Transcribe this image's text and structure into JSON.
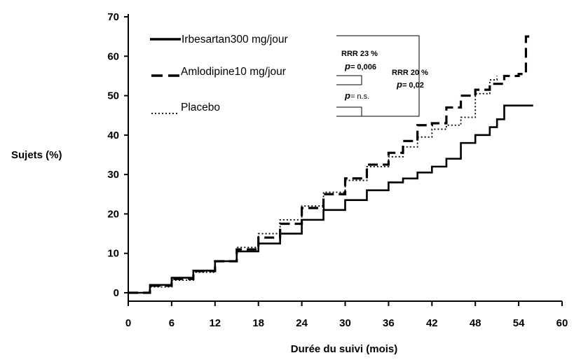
{
  "chart_data": {
    "type": "line",
    "xlabel": "Durée du suivi (mois)",
    "ylabel": "Sujets (%)",
    "xlim": [
      0,
      60
    ],
    "ylim": [
      0,
      70
    ],
    "x_ticks": [
      0,
      6,
      12,
      18,
      24,
      30,
      36,
      42,
      48,
      54,
      60
    ],
    "y_ticks": [
      0,
      10,
      20,
      30,
      40,
      50,
      60,
      70
    ],
    "grid": false,
    "legend_position": "top-left",
    "series": [
      {
        "name": "Irbesartan300 mg/jour",
        "style": "solid",
        "color": "#000000",
        "step": true,
        "x": [
          0,
          3,
          6,
          9,
          12,
          15,
          18,
          21,
          24,
          27,
          30,
          33,
          36,
          38,
          40,
          42,
          44,
          46,
          48,
          50,
          51,
          52,
          54,
          56
        ],
        "y": [
          0,
          2,
          3.8,
          5.6,
          8,
          10.5,
          12.5,
          15,
          18.5,
          21,
          23.5,
          26,
          28,
          29,
          30.5,
          32,
          34,
          38,
          40,
          42,
          44,
          47.5,
          47.5,
          47.5
        ]
      },
      {
        "name": "Amlodipine10 mg/jour",
        "style": "dashed",
        "color": "#000000",
        "step": true,
        "x": [
          0,
          3,
          6,
          9,
          12,
          15,
          18,
          21,
          24,
          27,
          30,
          33,
          36,
          38,
          40,
          42,
          44,
          46,
          48,
          50,
          52,
          54,
          55,
          56
        ],
        "y": [
          0,
          1.8,
          3.5,
          5.5,
          8,
          11,
          14,
          17.5,
          21.5,
          25,
          29,
          32.5,
          35.5,
          38.5,
          42.5,
          43,
          47,
          50,
          51.5,
          53,
          55,
          55.5,
          65,
          65
        ]
      },
      {
        "name": "Placebo",
        "style": "dotted",
        "color": "#000000",
        "step": true,
        "x": [
          0,
          3,
          6,
          9,
          12,
          15,
          18,
          21,
          24,
          27,
          30,
          33,
          36,
          38,
          40,
          42,
          44,
          46,
          48,
          50,
          51
        ],
        "y": [
          0,
          1.5,
          3.2,
          5.2,
          8,
          11.5,
          15,
          18.5,
          22,
          25.5,
          28.5,
          32,
          34.5,
          37,
          39.5,
          41.5,
          42.5,
          44.5,
          50.5,
          54,
          55
        ]
      }
    ],
    "annotations": {
      "rrr1": {
        "label": "RRR 23 %",
        "p_prefix": "p",
        "p_value": "= 0,006"
      },
      "rrr2": {
        "label": "RRR 20 %",
        "p_prefix": "p",
        "p_value": "= 0,02"
      },
      "ns": {
        "p_prefix": "p",
        "p_value": "= n.s."
      }
    }
  }
}
